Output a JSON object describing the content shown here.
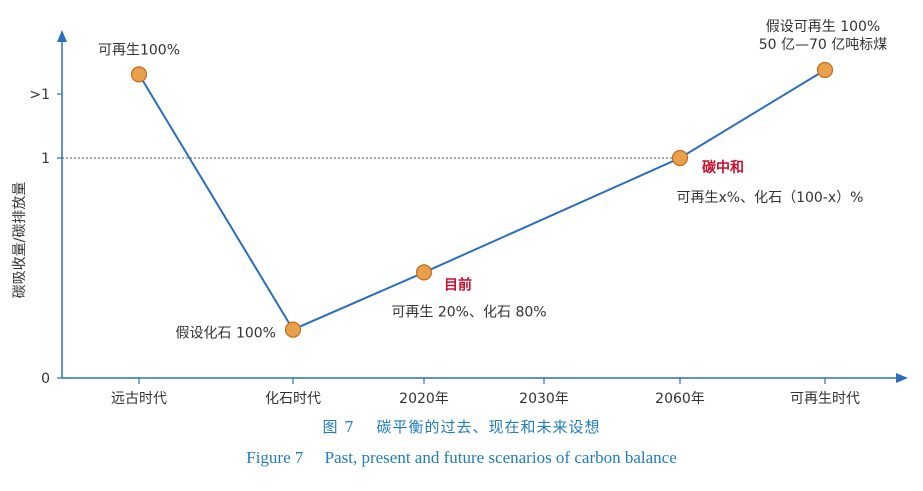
{
  "chart_data": {
    "type": "line",
    "ylabel": "碳吸收量/碳排放量",
    "y_ticks": [
      "0",
      "1",
      ">1"
    ],
    "categories": [
      "远古时代",
      "化石时代",
      "2020年",
      "2030年",
      "2060年",
      "可再生时代"
    ],
    "reference_line": {
      "y": 1,
      "style": "dotted"
    },
    "points": [
      {
        "category": "远古时代",
        "y": 1.38,
        "labels": [
          "可再生100%"
        ]
      },
      {
        "category": "化石时代",
        "y": 0.22,
        "labels": [
          "假设化石 100%"
        ]
      },
      {
        "category": "2020年",
        "y": 0.48,
        "highlight": "目前",
        "labels": [
          "可再生 20%、化石 80%"
        ]
      },
      {
        "category": "2060年",
        "y": 1.0,
        "highlight": "碳中和",
        "labels": [
          "可再生x%、化石（100-x）%"
        ]
      },
      {
        "category": "可再生时代",
        "y": 1.4,
        "labels": [
          "假设可再生 100%",
          "50 亿—70 亿吨标煤"
        ]
      }
    ],
    "colors": {
      "line": "#2a6ebd",
      "marker": "#e8a04c",
      "marker_edge": "#c46a1e",
      "highlight": "#c8102e",
      "axis": "#2a6ebd"
    }
  },
  "caption": {
    "cn": "图 7　 碳平衡的过去、现在和未来设想",
    "en": "Figure 7　 Past, present and future scenarios of carbon balance"
  }
}
